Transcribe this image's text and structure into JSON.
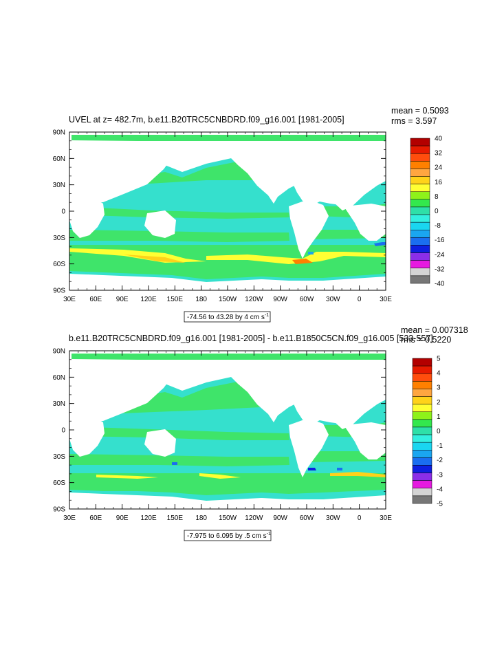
{
  "chart_data": [
    {
      "type": "heatmap",
      "title": "UVEL at z= 482.7m, b.e11.B20TRC5CNBDRD.f09_g16.001 [1981-2005]",
      "stats": {
        "mean": "mean = 0.5093",
        "rms": "rms = 3.597"
      },
      "x_ticks": [
        "30E",
        "60E",
        "90E",
        "120E",
        "150E",
        "180",
        "150W",
        "120W",
        "90W",
        "60W",
        "30W",
        "0",
        "30E"
      ],
      "y_ticks": [
        "90N",
        "60N",
        "30N",
        "0",
        "30S",
        "60S",
        "90S"
      ],
      "xlim": [
        30,
        390
      ],
      "ylim": [
        -90,
        90
      ],
      "range_label": "-74.56 to 43.28 by 4 cm s",
      "range_sup": "-1",
      "colorbar": {
        "labels": [
          "40",
          "32",
          "24",
          "16",
          "8",
          "0",
          "-8",
          "-16",
          "-24",
          "-32",
          "-40"
        ],
        "colors": [
          "#b30000",
          "#e61a00",
          "#ff4d0d",
          "#ff8000",
          "#ffa640",
          "#ffd21a",
          "#ffff33",
          "#8ef21a",
          "#33e84d",
          "#2ee0a8",
          "#33f0e0",
          "#1ad6f0",
          "#1aa6f0",
          "#1a6ef0",
          "#0d1fe0",
          "#8c2ee8",
          "#e61ae0",
          "#d4d4d4",
          "#777777"
        ]
      }
    },
    {
      "type": "heatmap",
      "title": "b.e11.B20TRC5CNBDRD.f09_g16.001 [1981-2005] - b.e11.B1850C5CN.f09_g16.005 [533-557]",
      "stats": {
        "mean": "mean = 0.007318",
        "rms": "rms = 0.5220"
      },
      "x_ticks": [
        "30E",
        "60E",
        "90E",
        "120E",
        "150E",
        "180",
        "150W",
        "120W",
        "90W",
        "60W",
        "30W",
        "0",
        "30E"
      ],
      "y_ticks": [
        "90N",
        "60N",
        "30N",
        "0",
        "30S",
        "60S",
        "90S"
      ],
      "xlim": [
        30,
        390
      ],
      "ylim": [
        -90,
        90
      ],
      "range_label": "-7.975 to 6.095 by .5 cm s",
      "range_sup": "-1",
      "colorbar": {
        "labels": [
          "5",
          "4",
          "3",
          "2",
          "1",
          "0",
          "-1",
          "-2",
          "-3",
          "-4",
          "-5"
        ],
        "colors": [
          "#b30000",
          "#e61a00",
          "#ff4d0d",
          "#ff8000",
          "#ffa640",
          "#ffd21a",
          "#ffff33",
          "#8ef21a",
          "#33e84d",
          "#2ee0a8",
          "#33f0e0",
          "#1ad6f0",
          "#1aa6f0",
          "#1a6ef0",
          "#0d1fe0",
          "#8c2ee8",
          "#e61ae0",
          "#d4d4d4",
          "#777777"
        ]
      }
    }
  ]
}
